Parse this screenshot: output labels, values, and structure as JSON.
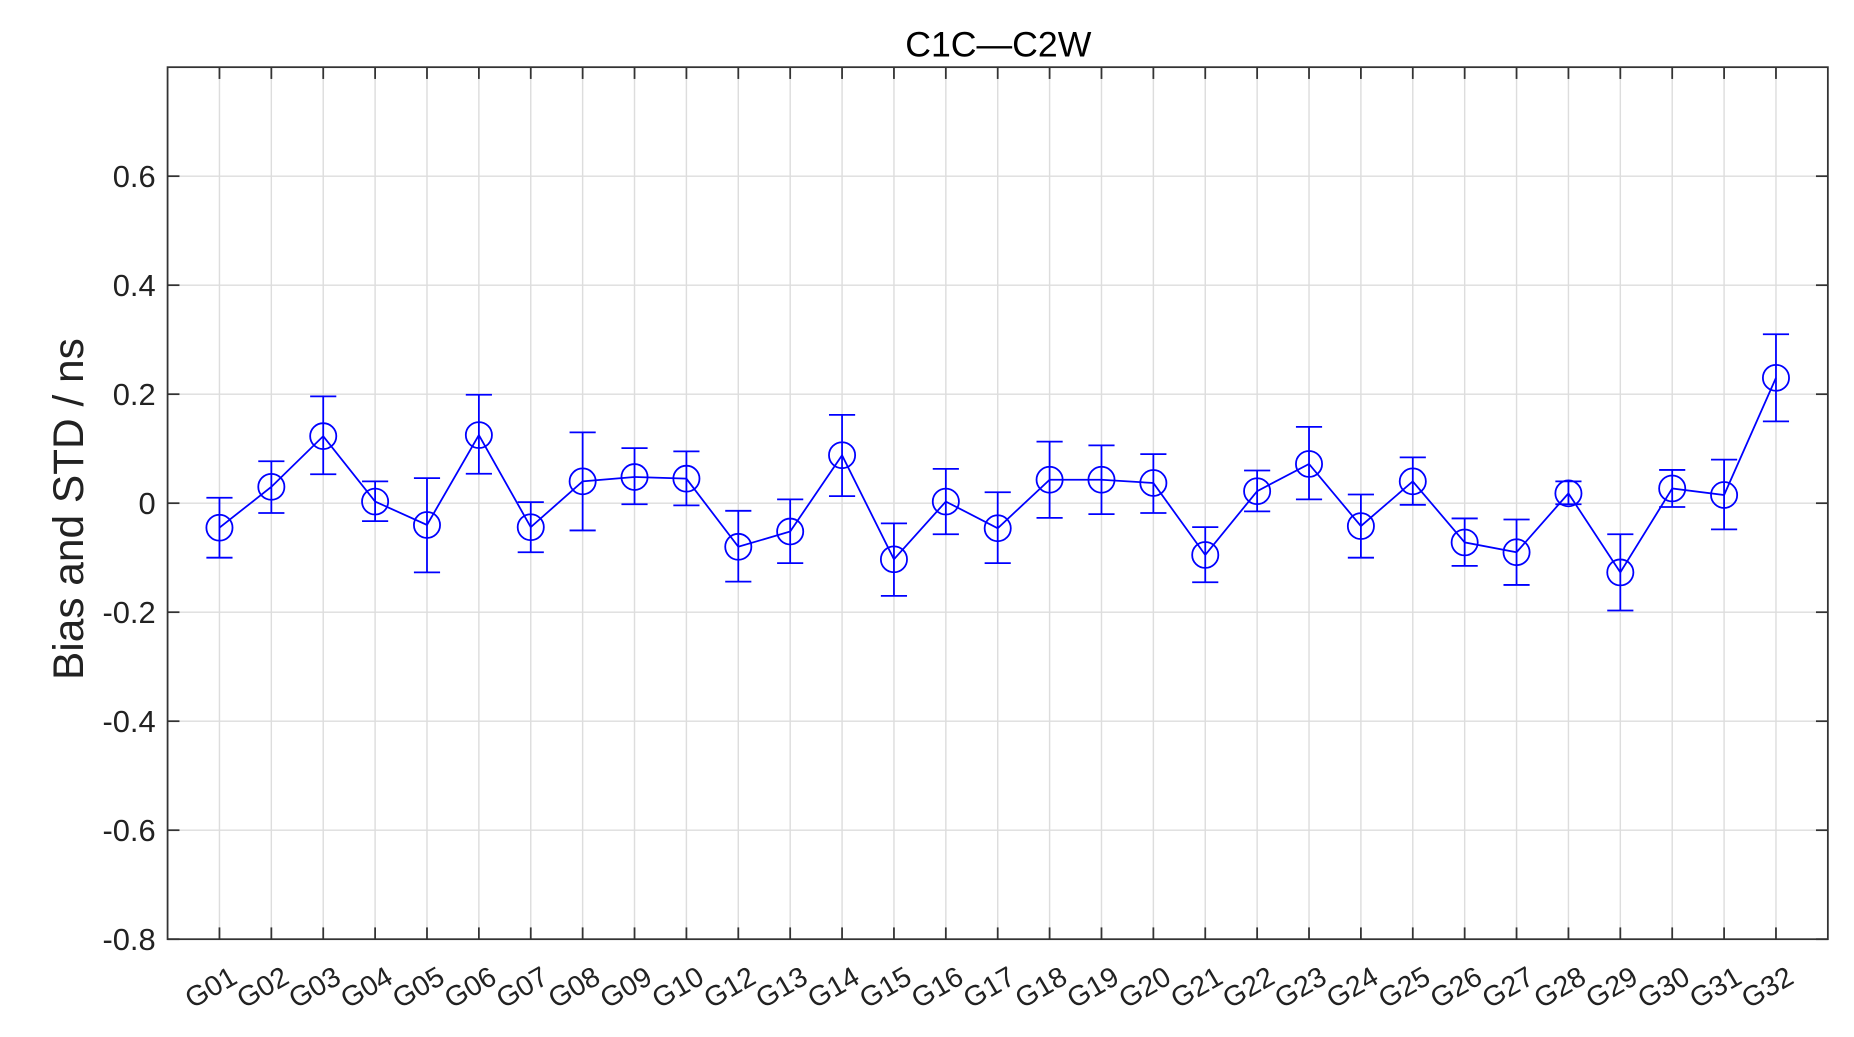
{
  "chart_data": {
    "type": "line",
    "title": "C1C—C2W",
    "xlabel": "",
    "ylabel": "Bias and STD / ns",
    "ylim": [
      -0.8,
      0.8
    ],
    "yticks": [
      "-0.8",
      "-0.6",
      "-0.4",
      "-0.2",
      "0",
      "0.2",
      "0.4",
      "0.6"
    ],
    "ytick_values": [
      -0.8,
      -0.6,
      -0.4,
      -0.2,
      0,
      0.2,
      0.4,
      0.6
    ],
    "grid": true,
    "marker": "circle",
    "error_bars": true,
    "color": "#0000ff",
    "categories": [
      "G01",
      "G02",
      "G03",
      "G04",
      "G05",
      "G06",
      "G07",
      "G08",
      "G09",
      "G10",
      "G12",
      "G13",
      "G14",
      "G15",
      "G16",
      "G17",
      "G18",
      "G19",
      "G20",
      "G21",
      "G22",
      "G23",
      "G24",
      "G25",
      "G26",
      "G27",
      "G28",
      "G29",
      "G30",
      "G31",
      "G32"
    ],
    "values": [
      -0.045,
      0.03,
      0.123,
      0.003,
      -0.04,
      0.125,
      -0.044,
      0.04,
      0.048,
      0.045,
      -0.08,
      -0.052,
      0.088,
      -0.103,
      0.003,
      -0.046,
      0.043,
      0.043,
      0.037,
      -0.095,
      0.022,
      0.072,
      -0.042,
      0.04,
      -0.072,
      -0.09,
      0.018,
      -0.127,
      0.027,
      0.015,
      0.23
    ],
    "lower": [
      -0.1,
      -0.018,
      0.053,
      -0.033,
      -0.127,
      0.054,
      -0.09,
      -0.05,
      -0.002,
      -0.004,
      -0.144,
      -0.11,
      0.013,
      -0.17,
      -0.057,
      -0.11,
      -0.027,
      -0.02,
      -0.018,
      -0.145,
      -0.015,
      0.007,
      -0.1,
      -0.003,
      -0.115,
      -0.15,
      -0.002,
      -0.197,
      -0.007,
      -0.048,
      0.15
    ],
    "upper": [
      0.01,
      0.077,
      0.196,
      0.04,
      0.046,
      0.199,
      0.002,
      0.13,
      0.101,
      0.095,
      -0.014,
      0.007,
      0.162,
      -0.037,
      0.063,
      0.02,
      0.113,
      0.106,
      0.09,
      -0.044,
      0.06,
      0.14,
      0.016,
      0.084,
      -0.028,
      -0.03,
      0.04,
      -0.057,
      0.061,
      0.08,
      0.31
    ]
  }
}
